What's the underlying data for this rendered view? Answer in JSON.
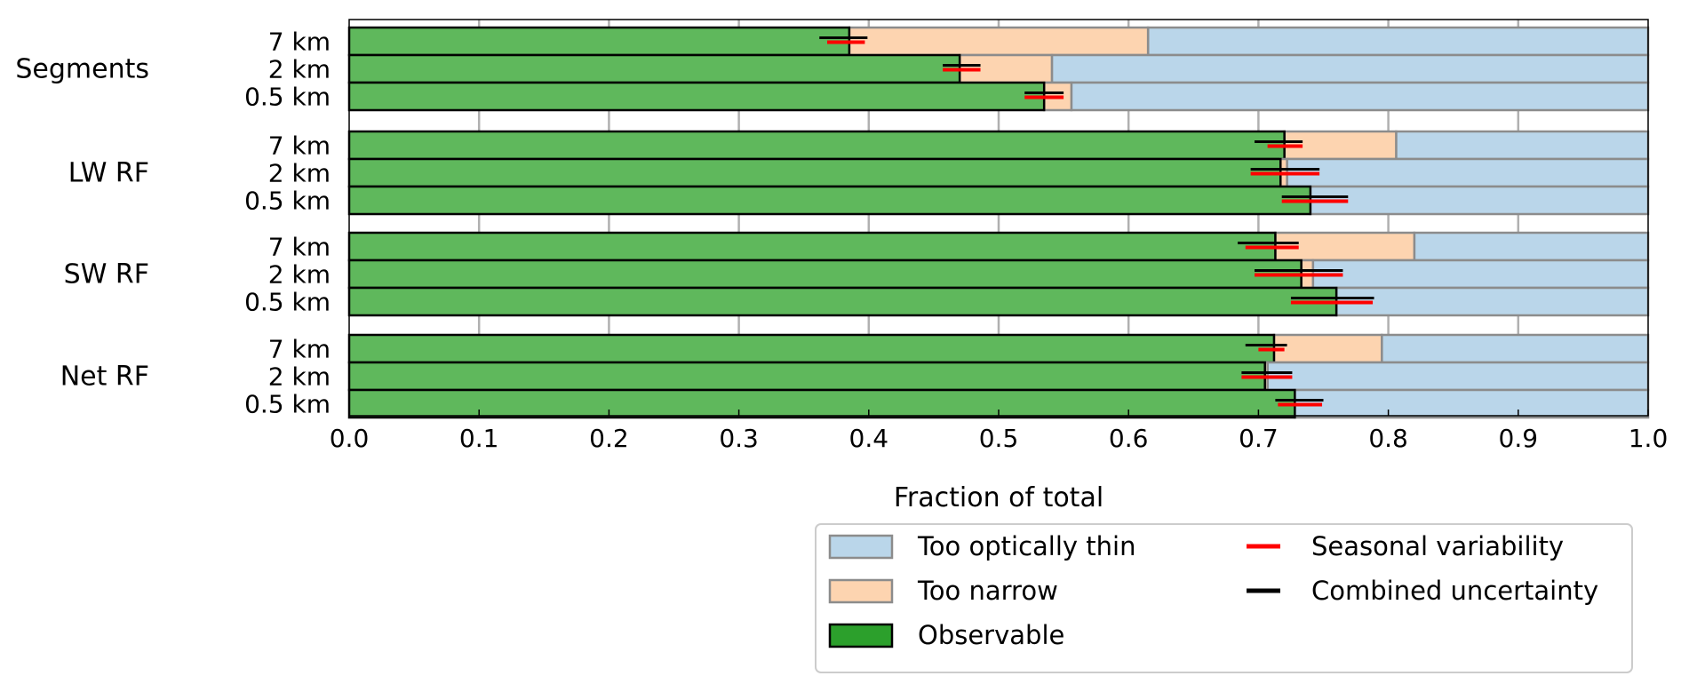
{
  "chart_data": {
    "type": "bar",
    "orientation": "horizontal",
    "stacked": true,
    "xlabel": "Fraction of total",
    "xlim": [
      0,
      1
    ],
    "xticks": [
      "0.0",
      "0.1",
      "0.2",
      "0.3",
      "0.4",
      "0.5",
      "0.6",
      "0.7",
      "0.8",
      "0.9",
      "1.0"
    ],
    "grid": "vertical",
    "legend_position": "bottom-right, below plot",
    "colors": {
      "observable": "#5fb85c",
      "too_narrow": "#fdd4b0",
      "too_optically_thin": "#bad6ea",
      "seasonal_variability": "#ff0000",
      "combined_uncertainty": "#000000",
      "observable_legend_swatch": "#2ca02c"
    },
    "legend": [
      {
        "key": "too_optically_thin",
        "label": "Too optically thin"
      },
      {
        "key": "too_narrow",
        "label": "Too narrow"
      },
      {
        "key": "observable",
        "label": "Observable"
      },
      {
        "key": "seasonal_variability",
        "label": "Seasonal variability"
      },
      {
        "key": "combined_uncertainty",
        "label": "Combined uncertainty"
      }
    ],
    "groups": [
      {
        "name": "Segments",
        "bars": [
          {
            "label": "7 km",
            "observable": 0.385,
            "narrow_end": 0.615,
            "seasonal": [
              0.368,
              0.397
            ],
            "combined": [
              0.362,
              0.399
            ]
          },
          {
            "label": "2 km",
            "observable": 0.47,
            "narrow_end": 0.541,
            "seasonal": [
              0.457,
              0.486
            ],
            "combined": [
              0.457,
              0.486
            ]
          },
          {
            "label": "0.5 km",
            "observable": 0.535,
            "narrow_end": 0.556,
            "seasonal": [
              0.52,
              0.55
            ],
            "combined": [
              0.52,
              0.55
            ]
          }
        ]
      },
      {
        "name": "LW RF",
        "bars": [
          {
            "label": "7 km",
            "observable": 0.72,
            "narrow_end": 0.806,
            "seasonal": [
              0.707,
              0.734
            ],
            "combined": [
              0.697,
              0.734
            ]
          },
          {
            "label": "2 km",
            "observable": 0.717,
            "narrow_end": 0.722,
            "seasonal": [
              0.694,
              0.747
            ],
            "combined": [
              0.694,
              0.747
            ]
          },
          {
            "label": "0.5 km",
            "observable": 0.74,
            "narrow_end": 0.74,
            "seasonal": [
              0.718,
              0.769
            ],
            "combined": [
              0.718,
              0.769
            ]
          }
        ]
      },
      {
        "name": "SW RF",
        "bars": [
          {
            "label": "7 km",
            "observable": 0.713,
            "narrow_end": 0.82,
            "seasonal": [
              0.69,
              0.731
            ],
            "combined": [
              0.684,
              0.731
            ]
          },
          {
            "label": "2 km",
            "observable": 0.733,
            "narrow_end": 0.742,
            "seasonal": [
              0.697,
              0.765
            ],
            "combined": [
              0.697,
              0.765
            ]
          },
          {
            "label": "0.5 km",
            "observable": 0.76,
            "narrow_end": 0.76,
            "seasonal": [
              0.725,
              0.788
            ],
            "combined": [
              0.725,
              0.789
            ]
          }
        ]
      },
      {
        "name": "Net RF",
        "bars": [
          {
            "label": "7 km",
            "observable": 0.712,
            "narrow_end": 0.795,
            "seasonal": [
              0.7,
              0.72
            ],
            "combined": [
              0.69,
              0.722
            ]
          },
          {
            "label": "2 km",
            "observable": 0.705,
            "narrow_end": 0.707,
            "seasonal": [
              0.687,
              0.726
            ],
            "combined": [
              0.687,
              0.726
            ]
          },
          {
            "label": "0.5 km",
            "observable": 0.728,
            "narrow_end": 0.728,
            "seasonal": [
              0.715,
              0.749
            ],
            "combined": [
              0.713,
              0.75
            ]
          }
        ]
      }
    ]
  }
}
